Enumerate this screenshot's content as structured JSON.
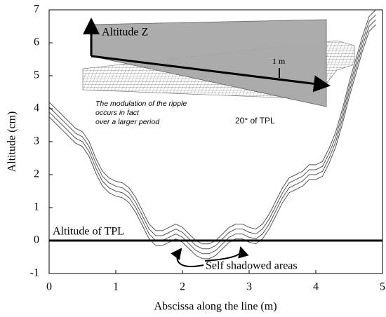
{
  "chart_data": {
    "type": "line",
    "xlabel": "Abscissa along the line (m)",
    "ylabel": "Altitude (cm)",
    "x": [
      0,
      0.2,
      0.4,
      0.5,
      0.6,
      0.7,
      0.8,
      0.9,
      1.0,
      1.1,
      1.2,
      1.3,
      1.4,
      1.5,
      1.6,
      1.7,
      1.8,
      1.9,
      2.0,
      2.1,
      2.2,
      2.3,
      2.4,
      2.5,
      2.6,
      2.7,
      2.8,
      2.9,
      3.0,
      3.1,
      3.2,
      3.3,
      3.4,
      3.5,
      3.6,
      3.7,
      3.8,
      3.9,
      4.0,
      4.1,
      4.2,
      4.3,
      4.4,
      4.5,
      4.6,
      4.7,
      4.8,
      4.9
    ],
    "series": [
      {
        "color": "#555555",
        "values": [
          4.2,
          3.8,
          3.4,
          3.3,
          3.0,
          2.5,
          2.1,
          1.9,
          1.8,
          1.75,
          1.6,
          1.3,
          0.9,
          0.5,
          0.3,
          0.3,
          0.4,
          0.5,
          0.4,
          0.2,
          0.0,
          -0.1,
          -0.1,
          0.0,
          0.2,
          0.4,
          0.5,
          0.5,
          0.4,
          0.35,
          0.5,
          0.8,
          1.2,
          1.6,
          1.9,
          2.0,
          2.1,
          2.3,
          2.3,
          2.4,
          2.8,
          3.3,
          4.0,
          4.8,
          5.5,
          6.2,
          6.8,
          7.0
        ]
      },
      {
        "color": "#555555",
        "values": [
          4.05,
          3.65,
          3.25,
          3.15,
          2.85,
          2.35,
          1.95,
          1.75,
          1.65,
          1.6,
          1.45,
          1.15,
          0.75,
          0.35,
          0.15,
          0.15,
          0.25,
          0.35,
          0.25,
          0.05,
          -0.15,
          -0.25,
          -0.25,
          -0.15,
          0.05,
          0.25,
          0.35,
          0.35,
          0.25,
          0.2,
          0.35,
          0.65,
          1.05,
          1.45,
          1.75,
          1.85,
          1.95,
          2.15,
          2.15,
          2.25,
          2.65,
          3.15,
          3.85,
          4.65,
          5.35,
          6.05,
          6.65,
          6.85
        ]
      },
      {
        "color": "#555555",
        "values": [
          3.9,
          3.5,
          3.1,
          3.0,
          2.7,
          2.2,
          1.8,
          1.6,
          1.5,
          1.45,
          1.3,
          1.0,
          0.6,
          0.2,
          0.0,
          0.0,
          0.1,
          0.2,
          0.1,
          -0.1,
          -0.3,
          -0.4,
          -0.4,
          -0.3,
          -0.1,
          0.1,
          0.2,
          0.2,
          0.1,
          0.05,
          0.2,
          0.5,
          0.9,
          1.3,
          1.6,
          1.7,
          1.8,
          2.0,
          2.0,
          2.1,
          2.5,
          3.0,
          3.7,
          4.5,
          5.2,
          5.9,
          6.5,
          6.7
        ]
      },
      {
        "color": "#555555",
        "values": [
          3.75,
          3.35,
          2.95,
          2.85,
          2.55,
          2.05,
          1.65,
          1.45,
          1.35,
          1.3,
          1.15,
          0.85,
          0.45,
          0.05,
          -0.15,
          -0.15,
          -0.05,
          0.05,
          -0.05,
          -0.25,
          -0.45,
          -0.55,
          -0.55,
          -0.45,
          -0.25,
          -0.05,
          0.05,
          0.05,
          -0.05,
          -0.1,
          0.05,
          0.35,
          0.75,
          1.15,
          1.45,
          1.55,
          1.65,
          1.85,
          1.85,
          1.95,
          2.35,
          2.85,
          3.55,
          4.35,
          5.05,
          5.75,
          6.35,
          6.55
        ]
      }
    ],
    "xlim": [
      0,
      5
    ],
    "xticks": [
      0,
      1,
      2,
      3,
      4,
      5
    ],
    "ylim": [
      -1,
      7
    ],
    "yticks": [
      -1,
      0,
      1,
      2,
      3,
      4,
      5,
      6,
      7
    ],
    "reference_line": {
      "value": 0,
      "label": "Altitude of TPL",
      "color": "#000000"
    },
    "annotations": [
      "Self shadowed areas",
      "Altitude Z",
      "1 m",
      "The modulation of the ripple",
      "occurs in fact",
      "over a larger period",
      "20° of TPL"
    ]
  }
}
